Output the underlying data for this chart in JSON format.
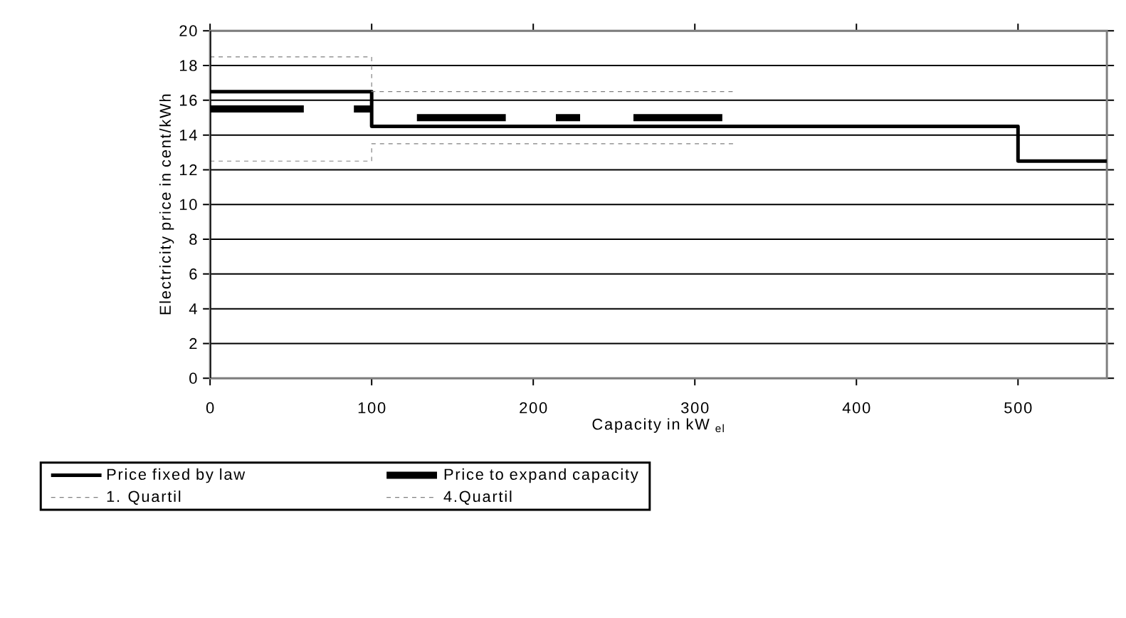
{
  "chart_data": {
    "type": "line",
    "xlabel": "Capacity in kW $_{el}$",
    "ylabel": "Electricity price in cent/kWh",
    "xlim": [
      0,
      555
    ],
    "ylim": [
      0,
      20
    ],
    "xticks": [
      0,
      100,
      200,
      300,
      400,
      500
    ],
    "yticks": [
      0,
      2,
      4,
      6,
      8,
      10,
      12,
      14,
      16,
      18,
      20
    ],
    "grid": "y",
    "legend": "bottom",
    "series": [
      {
        "name": "Price fixed by law",
        "type": "step",
        "color": "#000000",
        "line_style": "solid",
        "x": [
          0,
          100,
          500,
          555
        ],
        "values": [
          16.5,
          14.5,
          12.5,
          12.5
        ]
      },
      {
        "name": "Price to expand capacity",
        "color": "#000000",
        "line_style": "solid",
        "x": [
          0,
          58
        ],
        "values": [
          15.5,
          15.5
        ]
      },
      {
        "color": "#000000",
        "line_style": "solid",
        "x": [
          89,
          100
        ],
        "values": [
          15.5,
          15.5
        ]
      },
      {
        "color": "#000000",
        "line_style": "solid",
        "x": [
          128,
          183
        ],
        "values": [
          15,
          15
        ]
      },
      {
        "color": "#000000",
        "line_style": "solid",
        "x": [
          214,
          229
        ],
        "values": [
          15,
          15
        ]
      },
      {
        "color": "#000000",
        "line_style": "solid",
        "x": [
          262,
          317
        ],
        "values": [
          15,
          15
        ]
      },
      {
        "name": "1. Quartil",
        "type": "step",
        "color": "#808080",
        "line_style": "dashed",
        "x": [
          0,
          100,
          324
        ],
        "values": [
          12.5,
          13.5,
          13.5
        ]
      },
      {
        "name": "4.Quartil",
        "type": "step",
        "color": "#808080",
        "line_style": "dashed",
        "x": [
          0,
          100,
          324
        ],
        "values": [
          18.5,
          16.5,
          16.5
        ]
      }
    ]
  }
}
